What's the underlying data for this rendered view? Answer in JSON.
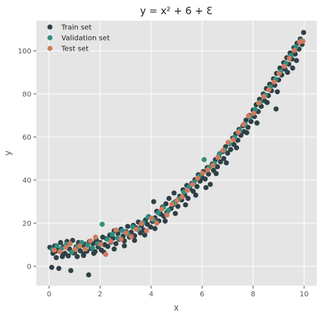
{
  "chart_data": {
    "type": "scatter",
    "title": "y = x² + 6 + Ɛ",
    "xlabel": "x",
    "ylabel": "y",
    "xlim": [
      -0.5,
      10.5
    ],
    "ylim": [
      -9,
      114
    ],
    "x_ticks": [
      0,
      2,
      4,
      6,
      8,
      10
    ],
    "y_ticks": [
      0,
      20,
      40,
      60,
      80,
      100
    ],
    "grid": true,
    "legend_position": "top-left",
    "background": "#e5e5e5",
    "series": [
      {
        "name": "Train set",
        "color": "#2f4046",
        "points": [
          [
            0.03,
            8.8
          ],
          [
            0.1,
            -0.5
          ],
          [
            0.15,
            6.0
          ],
          [
            0.22,
            9.5
          ],
          [
            0.28,
            4.0
          ],
          [
            0.35,
            7.5
          ],
          [
            0.38,
            -1.0
          ],
          [
            0.45,
            11.0
          ],
          [
            0.52,
            4.5
          ],
          [
            0.55,
            9.0
          ],
          [
            0.62,
            6.0
          ],
          [
            0.7,
            11.5
          ],
          [
            0.75,
            4.8
          ],
          [
            0.8,
            8.0
          ],
          [
            0.85,
            -2.0
          ],
          [
            0.92,
            12.0
          ],
          [
            1.0,
            6.5
          ],
          [
            1.05,
            9.0
          ],
          [
            1.1,
            4.5
          ],
          [
            1.15,
            11.0
          ],
          [
            1.22,
            7.2
          ],
          [
            1.3,
            9.8
          ],
          [
            1.35,
            5.0
          ],
          [
            1.4,
            10.2
          ],
          [
            1.48,
            7.0
          ],
          [
            1.55,
            -4.0
          ],
          [
            1.58,
            11.5
          ],
          [
            1.65,
            8.2
          ],
          [
            1.72,
            10.5
          ],
          [
            1.8,
            6.8
          ],
          [
            1.85,
            12.2
          ],
          [
            1.92,
            9.0
          ],
          [
            2.0,
            11.0
          ],
          [
            2.05,
            7.5
          ],
          [
            2.1,
            13.5
          ],
          [
            2.18,
            10.0
          ],
          [
            2.25,
            12.8
          ],
          [
            2.3,
            9.2
          ],
          [
            2.38,
            14.5
          ],
          [
            2.42,
            11.2
          ],
          [
            2.5,
            13.0
          ],
          [
            2.55,
            16.5
          ],
          [
            2.62,
            10.5
          ],
          [
            2.7,
            15.2
          ],
          [
            2.75,
            12.5
          ],
          [
            2.82,
            17.2
          ],
          [
            2.9,
            14.0
          ],
          [
            2.95,
            11.8
          ],
          [
            3.02,
            16.0
          ],
          [
            3.08,
            18.5
          ],
          [
            3.15,
            13.5
          ],
          [
            3.22,
            15.8
          ],
          [
            3.3,
            19.0
          ],
          [
            3.35,
            14.2
          ],
          [
            3.42,
            17.8
          ],
          [
            3.5,
            20.5
          ],
          [
            3.58,
            15.5
          ],
          [
            3.62,
            18.8
          ],
          [
            3.7,
            16.8
          ],
          [
            3.78,
            21.5
          ],
          [
            3.85,
            19.5
          ],
          [
            3.9,
            23.0
          ],
          [
            3.98,
            18.2
          ],
          [
            4.05,
            20.8
          ],
          [
            4.1,
            30.0
          ],
          [
            4.15,
            22.5
          ],
          [
            4.22,
            25.5
          ],
          [
            4.3,
            21.0
          ],
          [
            4.38,
            24.2
          ],
          [
            4.45,
            27.5
          ],
          [
            4.5,
            23.2
          ],
          [
            4.58,
            29.0
          ],
          [
            4.62,
            25.0
          ],
          [
            4.7,
            31.5
          ],
          [
            4.78,
            26.8
          ],
          [
            4.85,
            28.5
          ],
          [
            4.9,
            34.0
          ],
          [
            4.98,
            30.2
          ],
          [
            5.05,
            27.8
          ],
          [
            5.12,
            32.5
          ],
          [
            5.2,
            30.8
          ],
          [
            5.25,
            35.5
          ],
          [
            5.32,
            33.0
          ],
          [
            5.4,
            37.5
          ],
          [
            5.45,
            31.5
          ],
          [
            5.52,
            36.0
          ],
          [
            5.6,
            38.5
          ],
          [
            5.65,
            34.8
          ],
          [
            5.72,
            40.2
          ],
          [
            5.8,
            37.0
          ],
          [
            5.85,
            42.5
          ],
          [
            5.92,
            39.5
          ],
          [
            6.0,
            41.2
          ],
          [
            6.05,
            44.0
          ],
          [
            6.12,
            40.5
          ],
          [
            6.2,
            45.8
          ],
          [
            6.25,
            42.8
          ],
          [
            6.32,
            38.0
          ],
          [
            6.4,
            47.5
          ],
          [
            6.45,
            44.5
          ],
          [
            6.52,
            49.5
          ],
          [
            6.6,
            46.2
          ],
          [
            6.65,
            51.0
          ],
          [
            6.72,
            48.5
          ],
          [
            6.8,
            53.2
          ],
          [
            6.85,
            50.0
          ],
          [
            6.92,
            55.5
          ],
          [
            7.0,
            52.5
          ],
          [
            7.05,
            57.0
          ],
          [
            7.12,
            54.2
          ],
          [
            7.2,
            59.5
          ],
          [
            7.25,
            56.5
          ],
          [
            7.32,
            61.5
          ],
          [
            7.4,
            58.5
          ],
          [
            7.45,
            63.5
          ],
          [
            7.52,
            60.8
          ],
          [
            7.6,
            65.2
          ],
          [
            7.65,
            62.5
          ],
          [
            7.72,
            67.8
          ],
          [
            7.8,
            64.5
          ],
          [
            7.85,
            70.0
          ],
          [
            7.92,
            67.2
          ],
          [
            8.0,
            72.5
          ],
          [
            8.05,
            69.5
          ],
          [
            8.12,
            75.0
          ],
          [
            8.2,
            71.8
          ],
          [
            8.25,
            77.5
          ],
          [
            8.32,
            74.2
          ],
          [
            8.4,
            80.0
          ],
          [
            8.45,
            76.8
          ],
          [
            8.52,
            82.5
          ],
          [
            8.6,
            79.2
          ],
          [
            8.65,
            84.5
          ],
          [
            8.72,
            81.5
          ],
          [
            8.8,
            87.0
          ],
          [
            8.85,
            84.0
          ],
          [
            8.92,
            89.5
          ],
          [
            9.0,
            86.5
          ],
          [
            9.05,
            92.0
          ],
          [
            9.12,
            88.8
          ],
          [
            9.2,
            94.5
          ],
          [
            9.25,
            91.5
          ],
          [
            9.32,
            96.8
          ],
          [
            9.4,
            93.8
          ],
          [
            9.45,
            99.0
          ],
          [
            9.52,
            96.2
          ],
          [
            9.6,
            101.5
          ],
          [
            9.65,
            98.5
          ],
          [
            9.72,
            103.5
          ],
          [
            9.8,
            100.8
          ],
          [
            9.85,
            105.5
          ],
          [
            9.92,
            103.0
          ],
          [
            9.98,
            108.5
          ],
          [
            9.7,
            95.5
          ],
          [
            9.35,
            90.0
          ],
          [
            8.95,
            81.0
          ],
          [
            8.55,
            76.0
          ],
          [
            8.15,
            66.5
          ],
          [
            7.75,
            62.0
          ],
          [
            7.35,
            55.0
          ],
          [
            6.95,
            48.0
          ],
          [
            6.55,
            43.0
          ],
          [
            6.15,
            36.5
          ],
          [
            5.75,
            33.0
          ],
          [
            5.35,
            28.5
          ],
          [
            4.95,
            24.5
          ],
          [
            4.55,
            21.0
          ],
          [
            4.15,
            17.5
          ],
          [
            3.75,
            14.5
          ],
          [
            3.35,
            12.0
          ],
          [
            2.95,
            9.5
          ],
          [
            2.55,
            8.0
          ],
          [
            2.15,
            6.5
          ],
          [
            1.75,
            6.0
          ],
          [
            1.35,
            5.8
          ],
          [
            0.95,
            6.2
          ],
          [
            0.55,
            5.5
          ],
          [
            0.25,
            7.0
          ],
          [
            8.9,
            73.0
          ],
          [
            9.55,
            92.0
          ]
        ]
      },
      {
        "name": "Validation set",
        "color": "#2f8f80",
        "points": [
          [
            0.12,
            7.8
          ],
          [
            0.3,
            9.5
          ],
          [
            0.48,
            8.2
          ],
          [
            0.68,
            10.2
          ],
          [
            0.88,
            6.5
          ],
          [
            1.08,
            8.8
          ],
          [
            1.28,
            11.0
          ],
          [
            1.5,
            9.8
          ],
          [
            1.7,
            8.5
          ],
          [
            1.9,
            10.5
          ],
          [
            2.08,
            19.5
          ],
          [
            2.28,
            12.5
          ],
          [
            2.48,
            14.8
          ],
          [
            2.68,
            13.2
          ],
          [
            2.88,
            16.5
          ],
          [
            3.08,
            15.0
          ],
          [
            3.28,
            18.2
          ],
          [
            3.48,
            17.0
          ],
          [
            3.68,
            20.2
          ],
          [
            3.88,
            22.8
          ],
          [
            4.08,
            21.5
          ],
          [
            4.28,
            24.8
          ],
          [
            4.48,
            27.2
          ],
          [
            4.68,
            26.0
          ],
          [
            4.88,
            29.5
          ],
          [
            5.08,
            31.2
          ],
          [
            5.28,
            34.5
          ],
          [
            5.48,
            36.8
          ],
          [
            5.68,
            39.0
          ],
          [
            5.88,
            41.8
          ],
          [
            6.08,
            49.5
          ],
          [
            6.28,
            46.0
          ],
          [
            6.48,
            47.8
          ],
          [
            6.68,
            52.2
          ],
          [
            6.88,
            54.0
          ],
          [
            7.08,
            56.8
          ],
          [
            7.28,
            59.8
          ],
          [
            7.48,
            63.0
          ],
          [
            7.68,
            66.0
          ],
          [
            7.88,
            69.2
          ],
          [
            8.08,
            72.8
          ],
          [
            8.28,
            76.2
          ],
          [
            8.48,
            79.5
          ],
          [
            8.68,
            83.2
          ],
          [
            8.88,
            86.8
          ],
          [
            9.08,
            90.5
          ],
          [
            9.28,
            94.2
          ],
          [
            9.48,
            97.8
          ],
          [
            9.68,
            101.8
          ],
          [
            9.88,
            104.8
          ]
        ]
      },
      {
        "name": "Test set",
        "color": "#d07a5e",
        "points": [
          [
            0.2,
            7.5
          ],
          [
            0.42,
            6.8
          ],
          [
            0.65,
            8.8
          ],
          [
            0.82,
            10.5
          ],
          [
            1.02,
            7.8
          ],
          [
            1.2,
            9.5
          ],
          [
            1.42,
            8.0
          ],
          [
            1.62,
            11.8
          ],
          [
            1.82,
            13.5
          ],
          [
            2.02,
            10.2
          ],
          [
            2.22,
            5.5
          ],
          [
            2.42,
            11.5
          ],
          [
            2.62,
            16.8
          ],
          [
            2.82,
            12.5
          ],
          [
            3.02,
            15.5
          ],
          [
            3.22,
            13.8
          ],
          [
            3.42,
            17.2
          ],
          [
            3.62,
            19.8
          ],
          [
            3.82,
            16.5
          ],
          [
            4.02,
            22.2
          ],
          [
            4.22,
            20.0
          ],
          [
            4.42,
            26.5
          ],
          [
            4.62,
            23.8
          ],
          [
            4.82,
            28.8
          ],
          [
            5.02,
            30.5
          ],
          [
            5.22,
            32.2
          ],
          [
            5.42,
            35.2
          ],
          [
            5.62,
            38.0
          ],
          [
            5.82,
            40.8
          ],
          [
            6.02,
            43.2
          ],
          [
            6.22,
            44.8
          ],
          [
            6.42,
            46.8
          ],
          [
            6.62,
            50.5
          ],
          [
            6.82,
            53.8
          ],
          [
            7.02,
            57.5
          ],
          [
            7.22,
            58.8
          ],
          [
            7.42,
            62.2
          ],
          [
            7.62,
            65.8
          ],
          [
            7.82,
            69.8
          ],
          [
            8.02,
            71.0
          ],
          [
            8.22,
            75.8
          ],
          [
            8.42,
            78.8
          ],
          [
            8.62,
            82.0
          ],
          [
            8.82,
            85.5
          ],
          [
            9.02,
            89.5
          ],
          [
            9.22,
            92.8
          ],
          [
            9.42,
            96.5
          ],
          [
            9.62,
            100.2
          ],
          [
            9.82,
            104.0
          ],
          [
            9.95,
            104.5
          ]
        ]
      }
    ]
  }
}
